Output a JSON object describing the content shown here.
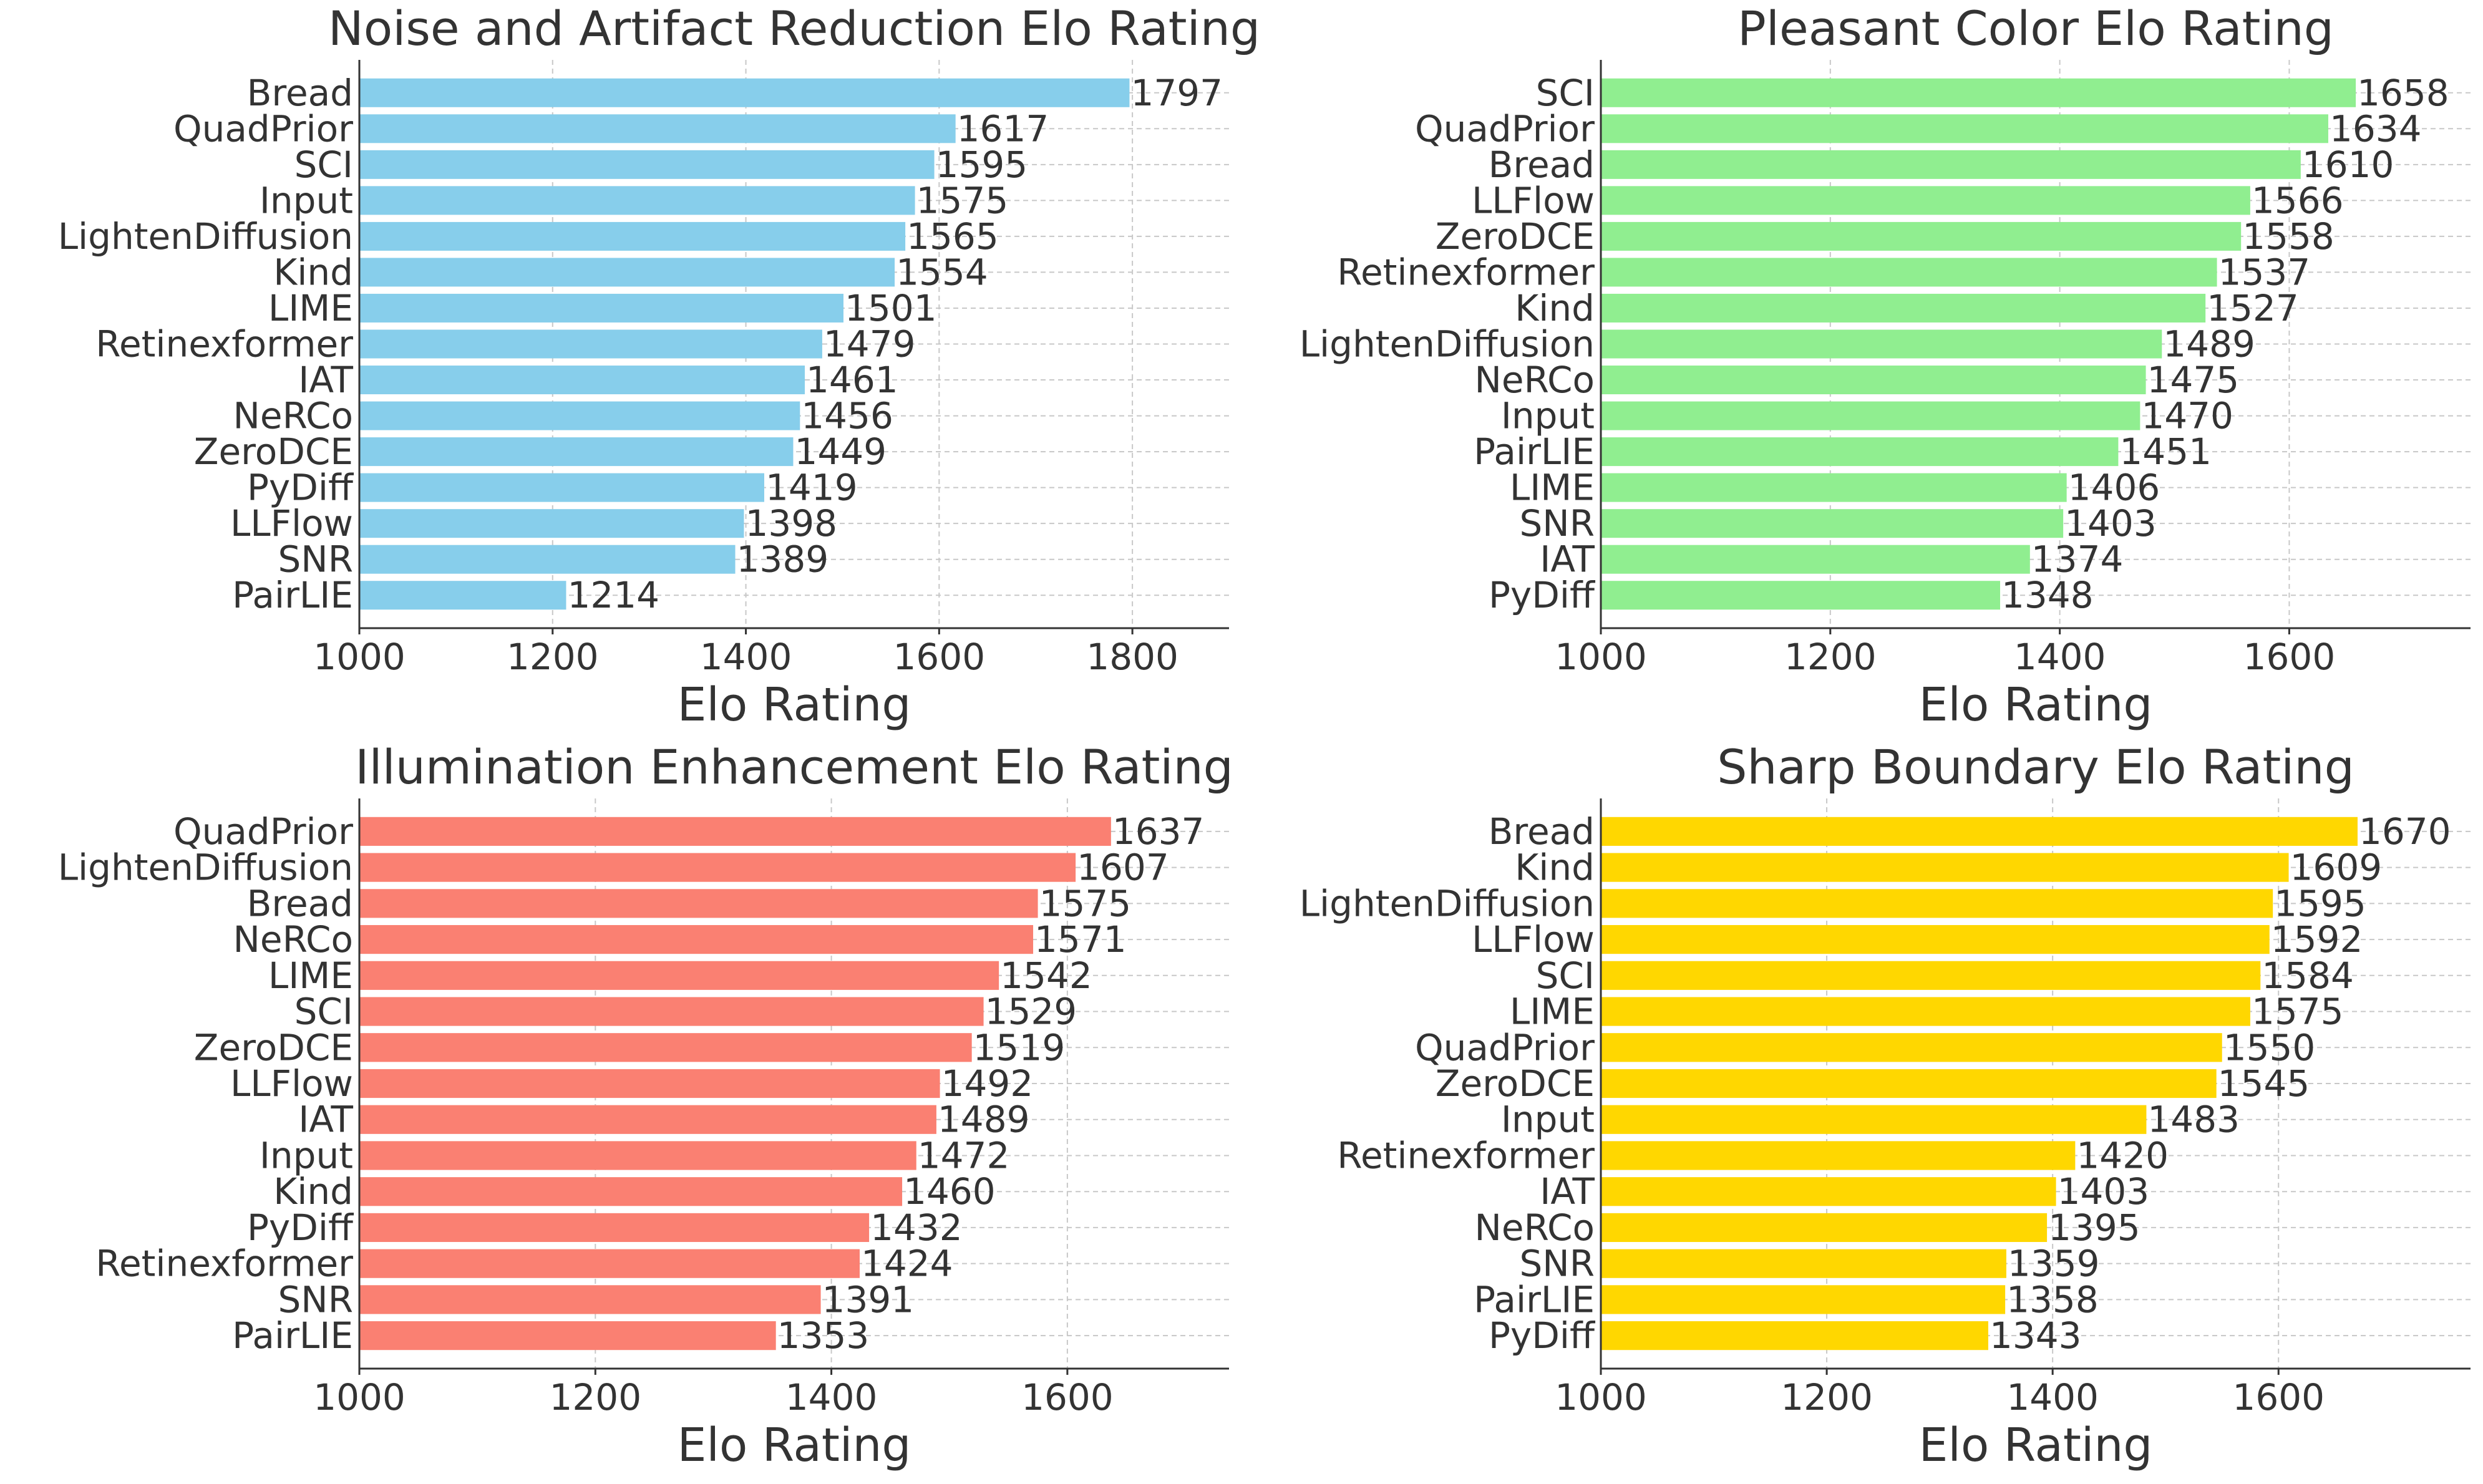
{
  "chart_data": [
    {
      "type": "bar",
      "orientation": "horizontal",
      "title": "Noise and Artifact Reduction Elo Rating",
      "xlabel": "Elo Rating",
      "ylabel": "",
      "xlim": [
        1000,
        1900
      ],
      "xticks": [
        1000,
        1200,
        1400,
        1600,
        1800
      ],
      "grid": true,
      "color": "#87CEEB",
      "categories": [
        "Bread",
        "QuadPrior",
        "SCI",
        "Input",
        "LightenDiffusion",
        "Kind",
        "LIME",
        "Retinexformer",
        "IAT",
        "NeRCo",
        "ZeroDCE",
        "PyDiff",
        "LLFlow",
        "SNR",
        "PairLIE"
      ],
      "values": [
        1797,
        1617,
        1595,
        1575,
        1565,
        1554,
        1501,
        1479,
        1461,
        1456,
        1449,
        1419,
        1398,
        1389,
        1214
      ]
    },
    {
      "type": "bar",
      "orientation": "horizontal",
      "title": "Pleasant Color Elo Rating",
      "xlabel": "Elo Rating",
      "ylabel": "",
      "xlim": [
        1000,
        1758
      ],
      "xticks": [
        1000,
        1200,
        1400,
        1600
      ],
      "grid": true,
      "color": "#90EE90",
      "categories": [
        "SCI",
        "QuadPrior",
        "Bread",
        "LLFlow",
        "ZeroDCE",
        "Retinexformer",
        "Kind",
        "LightenDiffusion",
        "NeRCo",
        "Input",
        "PairLIE",
        "LIME",
        "SNR",
        "IAT",
        "PyDiff"
      ],
      "values": [
        1658,
        1634,
        1610,
        1566,
        1558,
        1537,
        1527,
        1489,
        1475,
        1470,
        1451,
        1406,
        1403,
        1374,
        1348
      ]
    },
    {
      "type": "bar",
      "orientation": "horizontal",
      "title": "Illumination Enhancement Elo Rating",
      "xlabel": "Elo Rating",
      "ylabel": "",
      "xlim": [
        1000,
        1737
      ],
      "xticks": [
        1000,
        1200,
        1400,
        1600
      ],
      "grid": true,
      "color": "#FA8072",
      "categories": [
        "QuadPrior",
        "LightenDiffusion",
        "Bread",
        "NeRCo",
        "LIME",
        "SCI",
        "ZeroDCE",
        "LLFlow",
        "IAT",
        "Input",
        "Kind",
        "PyDiff",
        "Retinexformer",
        "SNR",
        "PairLIE"
      ],
      "values": [
        1637,
        1607,
        1575,
        1571,
        1542,
        1529,
        1519,
        1492,
        1489,
        1472,
        1460,
        1432,
        1424,
        1391,
        1353
      ]
    },
    {
      "type": "bar",
      "orientation": "horizontal",
      "title": "Sharp Boundary Elo Rating",
      "xlabel": "Elo Rating",
      "ylabel": "",
      "xlim": [
        1000,
        1770
      ],
      "xticks": [
        1000,
        1200,
        1400,
        1600
      ],
      "grid": true,
      "color": "#FFD700",
      "categories": [
        "Bread",
        "Kind",
        "LightenDiffusion",
        "LLFlow",
        "SCI",
        "LIME",
        "QuadPrior",
        "ZeroDCE",
        "Input",
        "Retinexformer",
        "IAT",
        "NeRCo",
        "SNR",
        "PairLIE",
        "PyDiff"
      ],
      "values": [
        1670,
        1609,
        1595,
        1592,
        1584,
        1575,
        1550,
        1545,
        1483,
        1420,
        1403,
        1395,
        1359,
        1358,
        1343
      ]
    }
  ]
}
